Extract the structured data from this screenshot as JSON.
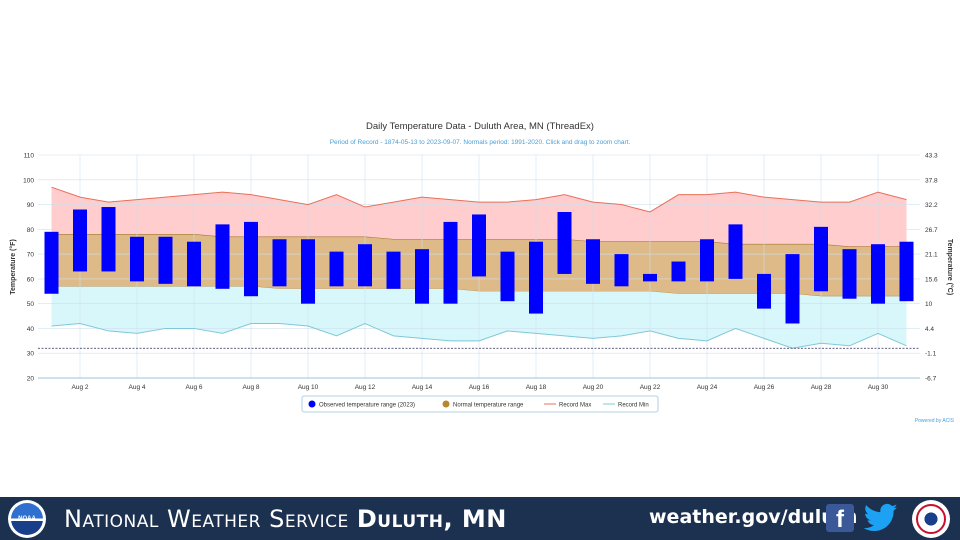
{
  "chart_data": {
    "type": "bar",
    "title": "Daily Temperature Data - Duluth Area, MN (ThreadEx)",
    "subtitle": "Period of Record - 1874-05-13 to 2023-09-07. Normals period: 1991-2020. Click and drag to zoom chart.",
    "ylabel_left": "Temperature (°F)",
    "ylabel_right": "Temperature (°C)",
    "ylim": [
      20,
      110
    ],
    "yticks_left": [
      "110",
      "100",
      "90",
      "80",
      "70",
      "60",
      "50",
      "40",
      "30",
      "20"
    ],
    "yticks_right": [
      "43.3",
      "37.8",
      "32.2",
      "26.7",
      "21.1",
      "15.6",
      "10",
      "4.4",
      "-1.1",
      "-6.7"
    ],
    "xticks": [
      "Aug 2",
      "Aug 4",
      "Aug 6",
      "Aug 8",
      "Aug 10",
      "Aug 12",
      "Aug 14",
      "Aug 16",
      "Aug 18",
      "Aug 20",
      "Aug 22",
      "Aug 24",
      "Aug 26",
      "Aug 28",
      "Aug 30"
    ],
    "days": [
      1,
      2,
      3,
      4,
      5,
      6,
      7,
      8,
      9,
      10,
      11,
      12,
      13,
      14,
      15,
      16,
      17,
      18,
      19,
      20,
      21,
      22,
      23,
      24,
      25,
      26,
      27,
      28,
      29,
      30,
      31
    ],
    "freezing_line": 32,
    "series": [
      {
        "name": "Observed temperature range (2023)",
        "type": "range-bar",
        "color": "#0000ff",
        "low": [
          54,
          63,
          63,
          59,
          58,
          57,
          56,
          53,
          57,
          50,
          57,
          57,
          56,
          50,
          50,
          61,
          51,
          46,
          62,
          58,
          57,
          59,
          59,
          59,
          60,
          48,
          42,
          55,
          52,
          50,
          51
        ],
        "high": [
          79,
          88,
          89,
          77,
          77,
          75,
          82,
          83,
          76,
          76,
          71,
          74,
          71,
          72,
          83,
          86,
          71,
          75,
          87,
          76,
          70,
          62,
          67,
          76,
          82,
          62,
          70,
          81,
          72,
          74,
          75
        ]
      },
      {
        "name": "Normal temperature range",
        "type": "area-range",
        "color": "#c8963e",
        "low": [
          57,
          57,
          57,
          57,
          57,
          57,
          57,
          57,
          56,
          56,
          56,
          56,
          56,
          56,
          56,
          55,
          55,
          55,
          55,
          55,
          55,
          55,
          54,
          54,
          54,
          54,
          54,
          53,
          53,
          53,
          53
        ],
        "high": [
          78,
          78,
          78,
          78,
          78,
          78,
          77,
          77,
          77,
          77,
          77,
          77,
          76,
          76,
          76,
          76,
          76,
          76,
          76,
          75,
          75,
          75,
          75,
          75,
          74,
          74,
          74,
          74,
          73,
          73,
          73
        ]
      },
      {
        "name": "Record Max",
        "type": "line",
        "color": "#e8705a",
        "values": [
          97,
          93,
          91,
          92,
          93,
          94,
          95,
          94,
          92,
          90,
          94,
          89,
          91,
          93,
          92,
          91,
          91,
          92,
          94,
          91,
          90,
          87,
          94,
          94,
          95,
          93,
          92,
          91,
          91,
          95,
          92
        ]
      },
      {
        "name": "Record Min",
        "type": "line",
        "color": "#7fc8d8",
        "values": [
          41,
          42,
          39,
          38,
          40,
          40,
          38,
          42,
          42,
          41,
          37,
          42,
          37,
          36,
          35,
          35,
          39,
          38,
          37,
          36,
          37,
          39,
          36,
          35,
          40,
          36,
          32,
          34,
          33,
          38,
          33
        ]
      }
    ],
    "legend_position": "bottom-center",
    "credit": "Powered by ACIS"
  },
  "footer": {
    "org_prefix": "National Weather Service",
    "org_city": "Duluth, MN",
    "url": "weather.gov/duluth",
    "noaa_logo_text": "NOAA",
    "facebook_icon": "facebook-icon",
    "twitter_icon": "twitter-icon"
  },
  "colors": {
    "footer_bg": "#1c3150",
    "record_band": "#ffc4c4",
    "normal_band": "#d9b27a",
    "min_band": "#d4f6fa"
  }
}
